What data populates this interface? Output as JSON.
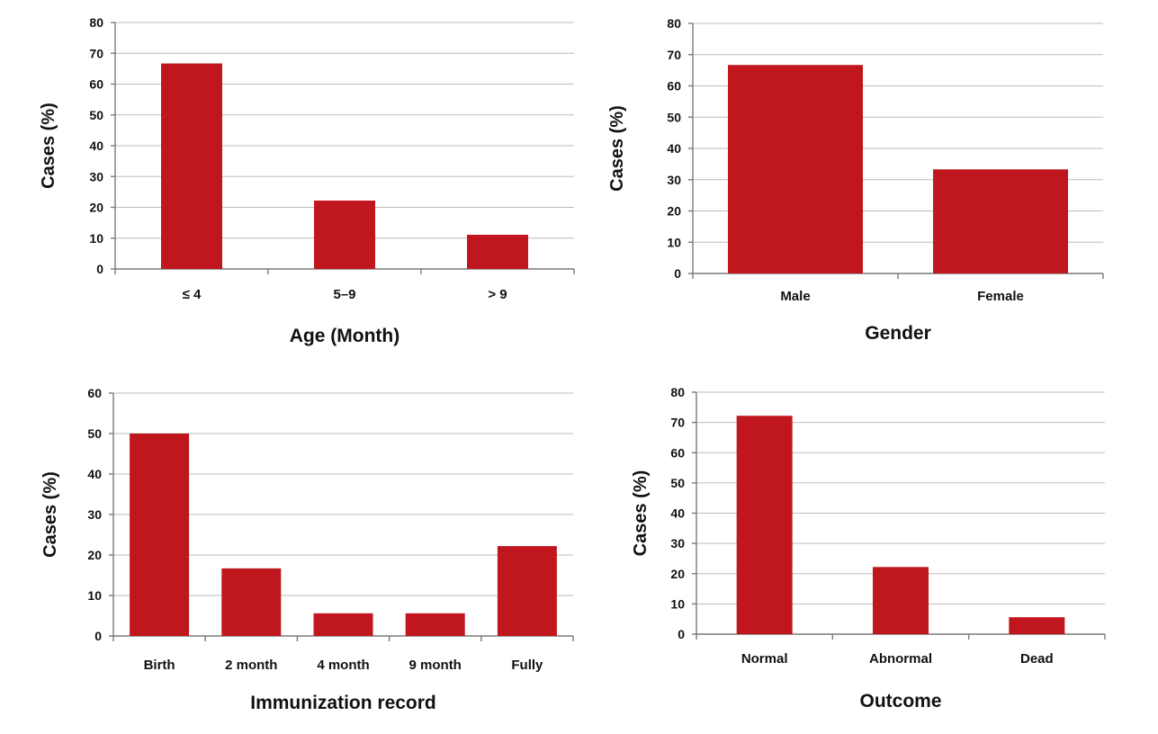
{
  "figure": {
    "bar_color": "#c0171e"
  },
  "chart_data": [
    {
      "type": "bar",
      "categories": [
        "≤ 4",
        "5–9",
        "> 9"
      ],
      "values": [
        66.7,
        22.2,
        11.1
      ],
      "xlabel": "Age (Month)",
      "ylabel": "Cases (%)",
      "ylim": [
        0,
        80
      ],
      "yticks": [
        0,
        10,
        20,
        30,
        40,
        50,
        60,
        70,
        80
      ],
      "grid": true
    },
    {
      "type": "bar",
      "categories": [
        "Male",
        "Female"
      ],
      "values": [
        66.7,
        33.3
      ],
      "xlabel": "Gender",
      "ylabel": "Cases (%)",
      "ylim": [
        0,
        80
      ],
      "yticks": [
        0,
        10,
        20,
        30,
        40,
        50,
        60,
        70,
        80
      ],
      "grid": true
    },
    {
      "type": "bar",
      "categories": [
        "Birth",
        "2 month",
        "4 month",
        "9 month",
        "Fully"
      ],
      "values": [
        50.0,
        16.7,
        5.6,
        5.6,
        22.2
      ],
      "xlabel": "Immunization record",
      "ylabel": "Cases (%)",
      "ylim": [
        0,
        60
      ],
      "yticks": [
        0,
        10,
        20,
        30,
        40,
        50,
        60
      ],
      "grid": true
    },
    {
      "type": "bar",
      "categories": [
        "Normal",
        "Abnormal",
        "Dead"
      ],
      "values": [
        72.2,
        22.2,
        5.6
      ],
      "xlabel": "Outcome",
      "ylabel": "Cases (%)",
      "ylim": [
        0,
        80
      ],
      "yticks": [
        0,
        10,
        20,
        30,
        40,
        50,
        60,
        70,
        80
      ],
      "grid": true
    }
  ]
}
